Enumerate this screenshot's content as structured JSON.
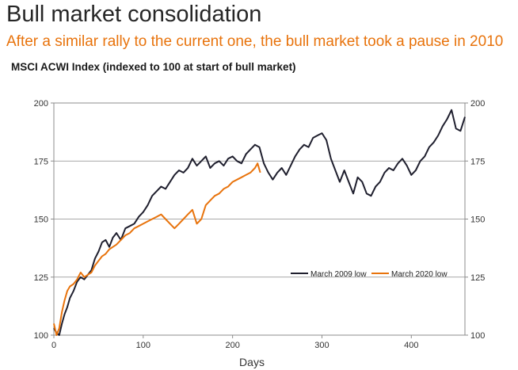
{
  "header": {
    "title": "Bull market consolidation",
    "subtitle": "After a similar rally to the current one, the bull market took a pause in 2010",
    "chart_heading": "MSCI ACWI Index (indexed to 100 at start of bull market)"
  },
  "colors": {
    "series_2009": "#1f1f2e",
    "series_2020": "#e8730c"
  },
  "chart_data": {
    "type": "line",
    "title": "MSCI ACWI Index (indexed to 100 at start of bull market)",
    "xlabel": "Days",
    "ylabel": "",
    "xlim": [
      0,
      460
    ],
    "ylim": [
      100,
      200
    ],
    "xticks": [
      0,
      100,
      200,
      300,
      400
    ],
    "yticks": [
      100,
      125,
      150,
      175,
      200
    ],
    "grid": "horizontal",
    "legend": "bottom-right",
    "series": [
      {
        "name": "March 2009 low",
        "color": "#1f1f2e",
        "points": [
          [
            0,
            103
          ],
          [
            3,
            101
          ],
          [
            6,
            100
          ],
          [
            9,
            105
          ],
          [
            12,
            109
          ],
          [
            15,
            112
          ],
          [
            18,
            116
          ],
          [
            22,
            119
          ],
          [
            26,
            123
          ],
          [
            30,
            125
          ],
          [
            34,
            124
          ],
          [
            38,
            126
          ],
          [
            42,
            128
          ],
          [
            46,
            133
          ],
          [
            50,
            136
          ],
          [
            54,
            140
          ],
          [
            58,
            141
          ],
          [
            62,
            138
          ],
          [
            66,
            142
          ],
          [
            70,
            144
          ],
          [
            75,
            141
          ],
          [
            80,
            146
          ],
          [
            85,
            147
          ],
          [
            90,
            148
          ],
          [
            95,
            151
          ],
          [
            100,
            153
          ],
          [
            105,
            156
          ],
          [
            110,
            160
          ],
          [
            115,
            162
          ],
          [
            120,
            164
          ],
          [
            125,
            163
          ],
          [
            130,
            166
          ],
          [
            135,
            169
          ],
          [
            140,
            171
          ],
          [
            145,
            170
          ],
          [
            150,
            172
          ],
          [
            155,
            176
          ],
          [
            160,
            173
          ],
          [
            165,
            175
          ],
          [
            170,
            177
          ],
          [
            175,
            172
          ],
          [
            180,
            174
          ],
          [
            185,
            175
          ],
          [
            190,
            173
          ],
          [
            195,
            176
          ],
          [
            200,
            177
          ],
          [
            205,
            175
          ],
          [
            210,
            174
          ],
          [
            215,
            178
          ],
          [
            220,
            180
          ],
          [
            225,
            182
          ],
          [
            230,
            181
          ],
          [
            235,
            174
          ],
          [
            240,
            170
          ],
          [
            245,
            167
          ],
          [
            250,
            170
          ],
          [
            255,
            172
          ],
          [
            260,
            169
          ],
          [
            265,
            173
          ],
          [
            270,
            177
          ],
          [
            275,
            180
          ],
          [
            280,
            182
          ],
          [
            285,
            181
          ],
          [
            290,
            185
          ],
          [
            295,
            186
          ],
          [
            300,
            187
          ],
          [
            305,
            184
          ],
          [
            310,
            176
          ],
          [
            315,
            171
          ],
          [
            320,
            166
          ],
          [
            325,
            171
          ],
          [
            330,
            166
          ],
          [
            335,
            161
          ],
          [
            340,
            168
          ],
          [
            345,
            166
          ],
          [
            350,
            161
          ],
          [
            355,
            160
          ],
          [
            360,
            164
          ],
          [
            365,
            166
          ],
          [
            370,
            170
          ],
          [
            375,
            172
          ],
          [
            380,
            171
          ],
          [
            385,
            174
          ],
          [
            390,
            176
          ],
          [
            395,
            173
          ],
          [
            400,
            169
          ],
          [
            405,
            171
          ],
          [
            410,
            175
          ],
          [
            415,
            177
          ],
          [
            420,
            181
          ],
          [
            425,
            183
          ],
          [
            430,
            186
          ],
          [
            435,
            190
          ],
          [
            440,
            193
          ],
          [
            445,
            197
          ],
          [
            450,
            189
          ],
          [
            455,
            188
          ],
          [
            460,
            194
          ]
        ]
      },
      {
        "name": "March 2020 low",
        "color": "#e8730c",
        "points": [
          [
            0,
            105
          ],
          [
            3,
            100
          ],
          [
            6,
            103
          ],
          [
            9,
            110
          ],
          [
            12,
            115
          ],
          [
            15,
            119
          ],
          [
            18,
            121
          ],
          [
            22,
            122
          ],
          [
            26,
            124
          ],
          [
            30,
            127
          ],
          [
            34,
            125
          ],
          [
            38,
            126
          ],
          [
            42,
            127
          ],
          [
            46,
            130
          ],
          [
            50,
            132
          ],
          [
            54,
            134
          ],
          [
            58,
            135
          ],
          [
            62,
            137
          ],
          [
            66,
            138
          ],
          [
            70,
            139
          ],
          [
            75,
            141
          ],
          [
            80,
            143
          ],
          [
            85,
            144
          ],
          [
            90,
            146
          ],
          [
            95,
            147
          ],
          [
            100,
            148
          ],
          [
            105,
            149
          ],
          [
            110,
            150
          ],
          [
            115,
            151
          ],
          [
            120,
            152
          ],
          [
            125,
            150
          ],
          [
            130,
            148
          ],
          [
            135,
            146
          ],
          [
            140,
            148
          ],
          [
            145,
            150
          ],
          [
            150,
            152
          ],
          [
            155,
            154
          ],
          [
            160,
            148
          ],
          [
            165,
            150
          ],
          [
            170,
            156
          ],
          [
            175,
            158
          ],
          [
            180,
            160
          ],
          [
            185,
            161
          ],
          [
            190,
            163
          ],
          [
            195,
            164
          ],
          [
            200,
            166
          ],
          [
            205,
            167
          ],
          [
            210,
            168
          ],
          [
            215,
            169
          ],
          [
            220,
            170
          ],
          [
            225,
            172
          ],
          [
            228,
            174
          ],
          [
            231,
            170
          ]
        ]
      }
    ]
  }
}
